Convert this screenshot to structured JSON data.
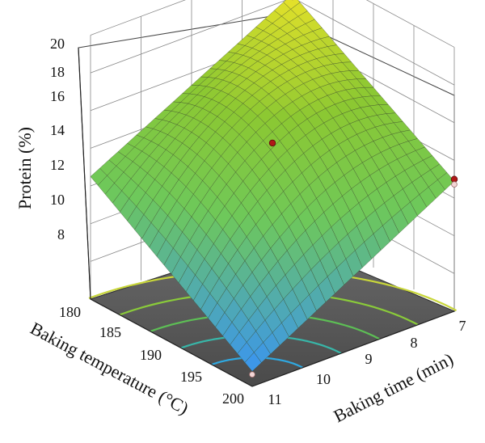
{
  "chart_data": {
    "type": "surface",
    "title": "",
    "zlabel": "Protein (%)",
    "xlabel": "Baking time (min)",
    "ylabel": "Baking temperature (°C)",
    "z_ticks": [
      "8",
      "10",
      "12",
      "14",
      "16",
      "18",
      "20"
    ],
    "x_ticks": [
      "7",
      "8",
      "9",
      "10",
      "11"
    ],
    "y_ticks": [
      "180",
      "185",
      "190",
      "195",
      "200"
    ],
    "zlim": [
      6,
      20
    ],
    "xlim": [
      7,
      11
    ],
    "ylim": [
      180,
      200
    ],
    "surface_corners": [
      {
        "time": 11,
        "temperature": 180,
        "protein": 12.5
      },
      {
        "time": 7,
        "temperature": 180,
        "protein": 18.2
      },
      {
        "time": 7,
        "temperature": 200,
        "protein": 12.9
      },
      {
        "time": 11,
        "temperature": 200,
        "protein": 6.8
      }
    ],
    "design_points": [
      {
        "time": 9,
        "temperature": 190,
        "protein": 14.6
      },
      {
        "time": 7,
        "temperature": 200,
        "protein": 13.0
      }
    ],
    "floor_contours": 5,
    "colors": {
      "low": "#3aa6e8",
      "mid": "#7cc23a",
      "high": "#f0e02a",
      "floor": "#5a5a5a",
      "point": "#b01818"
    }
  }
}
